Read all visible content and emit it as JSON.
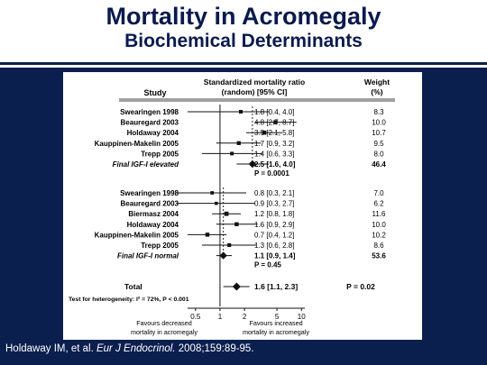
{
  "slide": {
    "title": "Mortality in Acromegaly",
    "subtitle": "Biochemical Determinants",
    "citation_prefix": "Holdaway IM, et al. ",
    "citation_journal": "Eur J Endocrinol.",
    "citation_suffix": " 2008;159:89-95."
  },
  "colors": {
    "title": "#0a1a4e",
    "band": "#0b1f4f",
    "marker": "#111111",
    "citation": "#ffffff"
  },
  "chart_data": {
    "type": "forest",
    "scale": "log",
    "xlim": [
      0.4,
      11
    ],
    "xticks": [
      0.5,
      1,
      2,
      5,
      10
    ],
    "reference_line": 1,
    "headers": {
      "study": "Study",
      "smr_line1": "Standardized mortality ratio",
      "smr_line2": "(random) [95% CI]",
      "weight_line1": "Weight",
      "weight_line2": "(%)"
    },
    "groups": [
      {
        "pooled_line": 2.5,
        "rows": [
          {
            "label": "Swearingen 1998",
            "est": 1.8,
            "lo": 0.4,
            "hi": 4.0,
            "ci_text": "1.8 [0.4, 4.0]",
            "weight": "8.3"
          },
          {
            "label": "Beauregard 2003",
            "est": 4.8,
            "lo": 2.7,
            "hi": 8.7,
            "ci_text": "4.8 [2.7, 8.7]",
            "weight": "10.0"
          },
          {
            "label": "Holdaway 2004",
            "est": 3.5,
            "lo": 2.1,
            "hi": 5.8,
            "ci_text": "3.5 [2.1, 5.8]",
            "weight": "10.7"
          },
          {
            "label": "Kauppinen-Makelin 2005",
            "est": 1.7,
            "lo": 0.9,
            "hi": 3.2,
            "ci_text": "1.7 [0.9, 3.2]",
            "weight": "9.5"
          },
          {
            "label": "Trepp 2005",
            "est": 1.4,
            "lo": 0.6,
            "hi": 3.3,
            "ci_text": "1.4 [0.6, 3.3]",
            "weight": "8.0"
          }
        ],
        "summary": {
          "label": "Final IGF-I elevated",
          "est": 2.5,
          "lo": 1.6,
          "hi": 4.0,
          "ci_text": "2.5 [1.6, 4.0]",
          "weight": "46.4",
          "p_text": "P = 0.0001"
        }
      },
      {
        "pooled_line": 1.1,
        "rows": [
          {
            "label": "Swearingen 1998",
            "est": 0.8,
            "lo": 0.3,
            "hi": 2.1,
            "ci_text": "0.8 [0.3, 2.1]",
            "weight": "7.0"
          },
          {
            "label": "Beauregard 2003",
            "est": 0.9,
            "lo": 0.3,
            "hi": 2.7,
            "ci_text": "0.9 [0.3, 2.7]",
            "weight": "6.2"
          },
          {
            "label": "Biermasz  2004",
            "est": 1.2,
            "lo": 0.8,
            "hi": 1.8,
            "ci_text": "1.2 [0.8, 1.8]",
            "weight": "11.6"
          },
          {
            "label": "Holdaway 2004",
            "est": 1.6,
            "lo": 0.9,
            "hi": 2.9,
            "ci_text": "1.6 [0.9, 2.9]",
            "weight": "10.0"
          },
          {
            "label": "Kauppinen-Makelin 2005",
            "est": 0.7,
            "lo": 0.4,
            "hi": 1.2,
            "ci_text": "0.7 [0.4, 1.2]",
            "weight": "10.2"
          },
          {
            "label": "Trepp 2005",
            "est": 1.3,
            "lo": 0.6,
            "hi": 2.8,
            "ci_text": "1.3 [0.6, 2.8]",
            "weight": "8.6"
          }
        ],
        "summary": {
          "label": "Final IGF-I normal",
          "est": 1.1,
          "lo": 0.9,
          "hi": 1.4,
          "ci_text": "1.1 [0.9, 1.4]",
          "weight": "53.6",
          "p_text": "P = 0.45"
        }
      }
    ],
    "total": {
      "label": "Total",
      "est": 1.6,
      "lo": 1.1,
      "hi": 2.3,
      "ci_text": "1.6 [1.1, 2.3]",
      "p_text": "P = 0.02"
    },
    "heterogeneity": "Test for heterogeneity: I² = 72%, P < 0.001",
    "footer_left": [
      "Favours decreased",
      "mortality in acromegaly"
    ],
    "footer_right": [
      "Favours increased",
      "mortality in acromegaly"
    ]
  }
}
